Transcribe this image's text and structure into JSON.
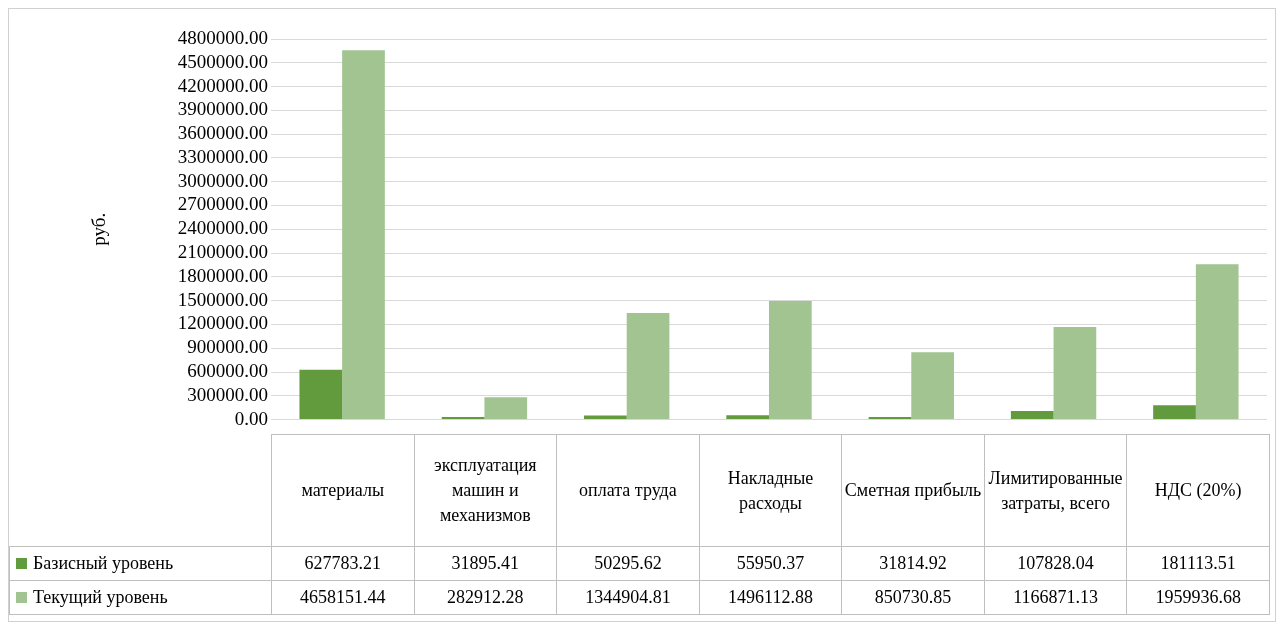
{
  "chart_data": {
    "type": "bar",
    "ylabel": "руб.",
    "categories": [
      "материалы",
      "эксплуатация машин и механизмов",
      "оплата труда",
      "Накладные расходы",
      "Сметная прибыль",
      "Лимитированные затраты, всего",
      "НДС (20%)"
    ],
    "series": [
      {
        "name": "Базисный уровень",
        "color": "#629b3d",
        "values": [
          627783.21,
          31895.41,
          50295.62,
          55950.37,
          31814.92,
          107828.04,
          181113.51
        ]
      },
      {
        "name": "Текущий уровень",
        "color": "#a1c490",
        "values": [
          4658151.44,
          282912.28,
          1344904.81,
          1496112.88,
          850730.85,
          1166871.13,
          1959936.68
        ]
      }
    ],
    "ylim": [
      0,
      4800000
    ],
    "yticks": [
      {
        "value": 0,
        "label": "0.00"
      },
      {
        "value": 300000,
        "label": "300000.00"
      },
      {
        "value": 600000,
        "label": "600000.00"
      },
      {
        "value": 900000,
        "label": "900000.00"
      },
      {
        "value": 1200000,
        "label": "1200000.00"
      },
      {
        "value": 1500000,
        "label": "1500000.00"
      },
      {
        "value": 1800000,
        "label": "1800000.00"
      },
      {
        "value": 2100000,
        "label": "2100000.00"
      },
      {
        "value": 2400000,
        "label": "2400000.00"
      },
      {
        "value": 2700000,
        "label": "2700000.00"
      },
      {
        "value": 3000000,
        "label": "3000000.00"
      },
      {
        "value": 3300000,
        "label": "3300000.00"
      },
      {
        "value": 3600000,
        "label": "3600000.00"
      },
      {
        "value": 3900000,
        "label": "3900000.00"
      },
      {
        "value": 4200000,
        "label": "4200000.00"
      },
      {
        "value": 4500000,
        "label": "4500000.00"
      },
      {
        "value": 4800000,
        "label": "4800000.00"
      }
    ],
    "grid": "y",
    "legend": "bottom",
    "data_labels": true
  }
}
